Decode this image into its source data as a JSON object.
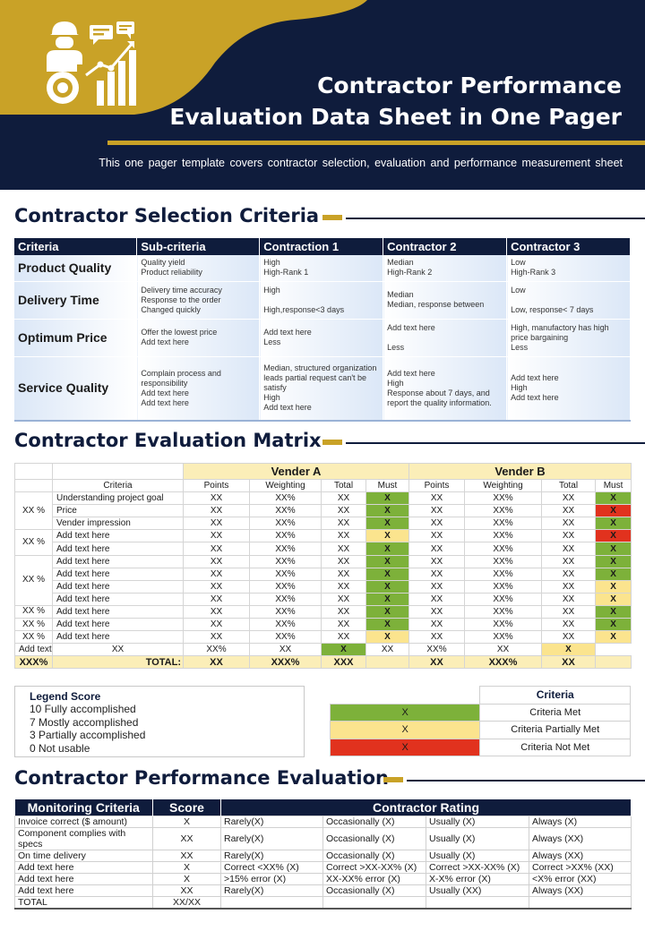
{
  "header": {
    "title_line1": "Contractor Performance",
    "title_line2": "Evaluation Data Sheet in One Pager",
    "subtitle": "This one pager template covers contractor selection, evaluation and performance measurement sheet",
    "icon": "contractor-analytics-icon"
  },
  "colors": {
    "navy": "#0f1c3c",
    "gold": "#c9a227",
    "green": "#7db13a",
    "yellow": "#fbe48e",
    "red": "#e1321e"
  },
  "selection": {
    "heading": "Contractor Selection Criteria",
    "columns": [
      "Criteria",
      "Sub-criteria",
      "Contraction 1",
      "Contractor  2",
      "Contractor  3"
    ],
    "rows": [
      {
        "criteria": "Product Quality",
        "cells": [
          [
            "Quality yield",
            "Product reliability"
          ],
          [
            "High",
            "High-Rank 1"
          ],
          [
            "Median",
            "High-Rank 2"
          ],
          [
            "Low",
            "High-Rank 3"
          ]
        ]
      },
      {
        "criteria": "Delivery Time",
        "cells": [
          [
            "Delivery time accuracy",
            "Response to the order",
            "Changed quickly"
          ],
          [
            "High",
            "",
            "High,response<3 days"
          ],
          [
            "Median",
            "Median,  response between"
          ],
          [
            "Low",
            "",
            "Low, response< 7 days"
          ]
        ]
      },
      {
        "criteria": "Optimum Price",
        "cells": [
          [
            "Offer the lowest price",
            "Add text here"
          ],
          [
            "Add text here",
            "Less"
          ],
          [
            "Add text here",
            "",
            "Less"
          ],
          [
            "High, manufactory has high price bargaining",
            "Less"
          ]
        ]
      },
      {
        "criteria": "Service Quality",
        "cells": [
          [
            "Complain process and responsibility",
            "Add text here",
            "Add text here"
          ],
          [
            "Median,  structured organization leads partial request can't be satisfy",
            "High",
            "Add text here"
          ],
          [
            "Add text here",
            "High",
            "Response about 7 days, and report the quality information."
          ],
          [
            "Add text here",
            "High",
            "Add text here"
          ]
        ]
      }
    ]
  },
  "matrix": {
    "heading": "Contractor Evaluation Matrix",
    "vendor_a": "Vender A",
    "vendor_b": "Vender B",
    "criteria_header": "Criteria",
    "sub_headers": [
      "Points",
      "Weighting",
      "Total",
      "Must"
    ],
    "groups": [
      {
        "pct": "XX %",
        "span": 3
      },
      {
        "pct": "XX %",
        "span": 2
      },
      {
        "pct": "XX %",
        "span": 4
      },
      {
        "pct": "XX %",
        "span": 1
      },
      {
        "pct": "XX %",
        "span": 1
      },
      {
        "pct": "XX %",
        "span": 1
      }
    ],
    "rows": [
      {
        "criteria": "Understanding project goal",
        "a": [
          "XX",
          "XX%",
          "XX",
          "X",
          "g"
        ],
        "b": [
          "XX",
          "XX%",
          "XX",
          "X",
          "g"
        ]
      },
      {
        "criteria": "Price",
        "a": [
          "XX",
          "XX%",
          "XX",
          "X",
          "g"
        ],
        "b": [
          "XX",
          "XX%",
          "XX",
          "X",
          "r"
        ]
      },
      {
        "criteria": "Vender impression",
        "a": [
          "XX",
          "XX%",
          "XX",
          "X",
          "g"
        ],
        "b": [
          "XX",
          "XX%",
          "XX",
          "X",
          "g"
        ]
      },
      {
        "criteria": "Add text here",
        "a": [
          "XX",
          "XX%",
          "XX",
          "X",
          "y"
        ],
        "b": [
          "XX",
          "XX%",
          "XX",
          "X",
          "r"
        ]
      },
      {
        "criteria": "Add text here",
        "a": [
          "XX",
          "XX%",
          "XX",
          "X",
          "g"
        ],
        "b": [
          "XX",
          "XX%",
          "XX",
          "X",
          "g"
        ]
      },
      {
        "criteria": "Add text here",
        "a": [
          "XX",
          "XX%",
          "XX",
          "X",
          "g"
        ],
        "b": [
          "XX",
          "XX%",
          "XX",
          "X",
          "g"
        ]
      },
      {
        "criteria": "Add text here",
        "a": [
          "XX",
          "XX%",
          "XX",
          "X",
          "g"
        ],
        "b": [
          "XX",
          "XX%",
          "XX",
          "X",
          "g"
        ]
      },
      {
        "criteria": "Add text here",
        "a": [
          "XX",
          "XX%",
          "XX",
          "X",
          "g"
        ],
        "b": [
          "XX",
          "XX%",
          "XX",
          "X",
          "y"
        ]
      },
      {
        "criteria": "Add text here",
        "a": [
          "XX",
          "XX%",
          "XX",
          "X",
          "g"
        ],
        "b": [
          "XX",
          "XX%",
          "XX",
          "X",
          "y"
        ]
      },
      {
        "criteria": "Add text here",
        "a": [
          "XX",
          "XX%",
          "XX",
          "X",
          "g"
        ],
        "b": [
          "XX",
          "XX%",
          "XX",
          "X",
          "g"
        ]
      },
      {
        "criteria": "Add text here",
        "a": [
          "XX",
          "XX%",
          "XX",
          "X",
          "g"
        ],
        "b": [
          "XX",
          "XX%",
          "XX",
          "X",
          "g"
        ]
      },
      {
        "criteria": "Add text here",
        "a": [
          "XX",
          "XX%",
          "XX",
          "X",
          "y"
        ],
        "b": [
          "XX",
          "XX%",
          "XX",
          "X",
          "y"
        ]
      },
      {
        "criteria": "Add text here",
        "a": [
          "XX",
          "XX%",
          "XX",
          "X",
          "g"
        ],
        "b": [
          "XX",
          "XX%",
          "XX",
          "X",
          "y"
        ]
      }
    ],
    "total": {
      "pct": "XXX%",
      "label": "TOTAL:",
      "a": [
        "XX",
        "XXX%",
        "XXX"
      ],
      "b": [
        "XX",
        "XXX%",
        "XX"
      ]
    }
  },
  "legend": {
    "title": "Legend Score",
    "items": [
      "10 Fully accomplished",
      "7 Mostly accomplished",
      "3 Partially accomplished",
      "0 Not usable"
    ]
  },
  "criteria_legend": {
    "header": "Criteria",
    "rows": [
      {
        "mark": "X",
        "color": "g",
        "label": "Criteria Met"
      },
      {
        "mark": "X",
        "color": "y",
        "label": "Criteria Partially Met"
      },
      {
        "mark": "X",
        "color": "r",
        "label": "Criteria Not Met"
      }
    ]
  },
  "performance": {
    "heading": "Contractor Performance Evaluation",
    "headers": [
      "Monitoring Criteria",
      "Score",
      "Contractor Rating"
    ],
    "rows": [
      [
        "Invoice correct ($ amount)",
        "X",
        "Rarely(X)",
        "Occasionally (X)",
        "Usually (X)",
        "Always (X)"
      ],
      [
        "Component complies with specs",
        "XX",
        "Rarely(X)",
        "Occasionally (X)",
        "Usually (X)",
        "Always (XX)"
      ],
      [
        "On time delivery",
        "XX",
        "Rarely(X)",
        "Occasionally (X)",
        "Usually (X)",
        "Always (XX)"
      ],
      [
        "Add text here",
        "X",
        "Correct <XX% (X)",
        "Correct >XX-XX% (X)",
        "Correct >XX-XX% (X)",
        "Correct >XX% (XX)"
      ],
      [
        "Add text here",
        "X",
        ">15% error (X)",
        "XX-XX% error (X)",
        "X-X% error (X)",
        "<X% error (XX)"
      ],
      [
        "Add text here",
        "XX",
        "Rarely(X)",
        "Occasionally (X)",
        "Usually (XX)",
        "Always (XX)"
      ],
      [
        "TOTAL",
        "XX/XX",
        "",
        "",
        "",
        ""
      ]
    ]
  }
}
